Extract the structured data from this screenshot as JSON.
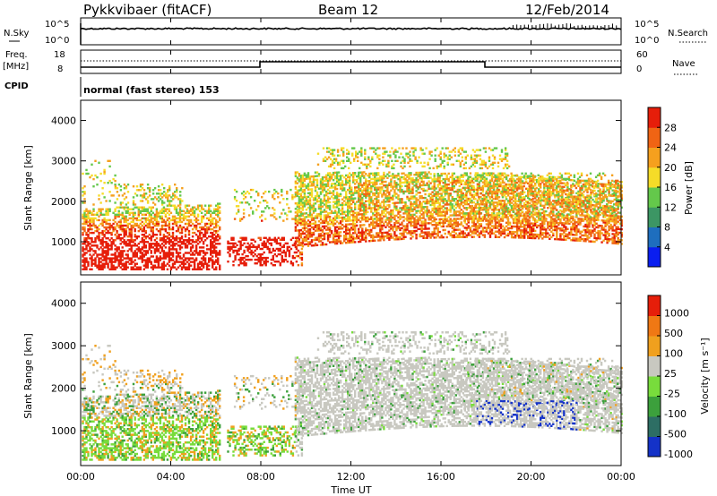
{
  "header": {
    "station": "Pykkvibaer (fitACF)",
    "beam": "Beam 12",
    "date": "12/Feb/2014"
  },
  "ops_panels": {
    "nsky_label": "N.Sky",
    "nsearch_label": "N.Search",
    "noise_ticks": [
      "10^5",
      "10^0"
    ],
    "freq_label_1": "Freq.",
    "freq_label_2": "[MHz]",
    "nave_label": "Nave",
    "freq_ticks": [
      "18",
      "8"
    ],
    "nave_ticks": [
      "60",
      "0"
    ],
    "cpid_label": "CPID",
    "cpid_text": "normal (fast stereo) 153"
  },
  "chart_data": [
    {
      "type": "heatmap",
      "name": "Power",
      "ylabel": "Slant Range [km]",
      "ylim": [
        180,
        4500
      ],
      "yticks": [
        1000,
        2000,
        3000,
        4000
      ],
      "colorbar_label": "Power [dB]",
      "colorbar_ticks": [
        "4",
        "8",
        "12",
        "16",
        "20",
        "24",
        "28"
      ],
      "colorscale": [
        "#0a1ef0",
        "#1e6ebe",
        "#3c9664",
        "#64c84b",
        "#f5dc28",
        "#f5a01e",
        "#f06414",
        "#e61e0a"
      ]
    },
    {
      "type": "heatmap",
      "name": "Velocity",
      "ylabel": "Slant Range [km]",
      "ylim": [
        180,
        4500
      ],
      "yticks": [
        1000,
        2000,
        3000,
        4000
      ],
      "colorbar_label": "Velocity [m s⁻¹]",
      "colorbar_ticks": [
        "1000",
        "500",
        "100",
        "25",
        "-25",
        "-100",
        "-500",
        "-1000"
      ],
      "colorscale": [
        "#1432c8",
        "#2d6e64",
        "#3ca03c",
        "#78dc3c",
        "#c8c8c0",
        "#f0a01e",
        "#f07814",
        "#e61e0a"
      ]
    }
  ],
  "x_axis": {
    "label": "Time UT",
    "ticks": [
      "00:00",
      "04:00",
      "08:00",
      "12:00",
      "16:00",
      "20:00",
      "00:00"
    ]
  }
}
